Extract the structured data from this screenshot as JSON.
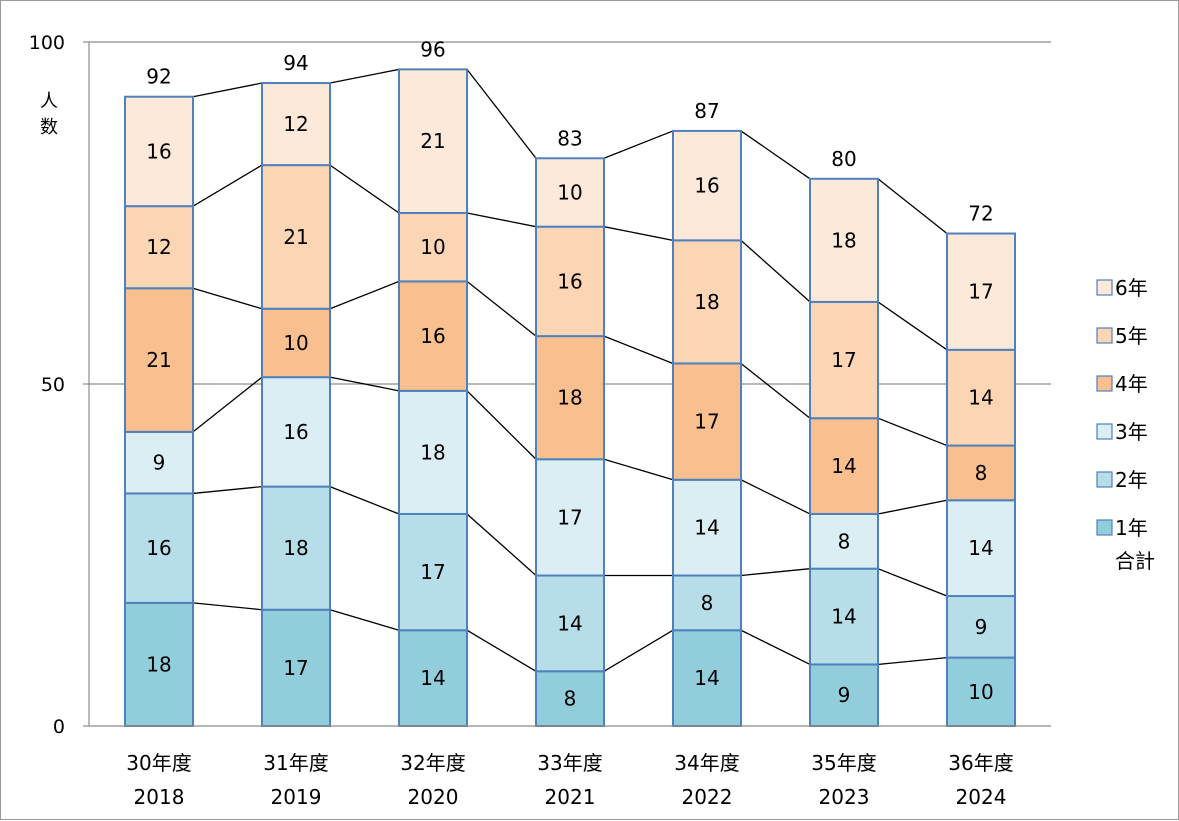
{
  "chart_data": {
    "type": "bar",
    "stacked": true,
    "title": "",
    "ylabel": "人数",
    "xlabel": "",
    "ylim": [
      0,
      100
    ],
    "yticks": [
      0,
      50,
      100
    ],
    "grid": true,
    "legend_position": "right",
    "connector_lines": true,
    "categories": [
      [
        "30年度",
        "2018"
      ],
      [
        "31年度",
        "2019"
      ],
      [
        "32年度",
        "2020"
      ],
      [
        "33年度",
        "2021"
      ],
      [
        "34年度",
        "2022"
      ],
      [
        "35年度",
        "2023"
      ],
      [
        "36年度",
        "2024"
      ]
    ],
    "series": [
      {
        "name": "1年",
        "color": "#92cddc",
        "values": [
          18,
          17,
          14,
          8,
          14,
          9,
          10
        ]
      },
      {
        "name": "2年",
        "color": "#b7dde8",
        "values": [
          16,
          18,
          17,
          14,
          8,
          14,
          9
        ]
      },
      {
        "name": "3年",
        "color": "#dbeef3",
        "values": [
          9,
          16,
          18,
          17,
          14,
          8,
          14
        ]
      },
      {
        "name": "4年",
        "color": "#fabf8f",
        "values": [
          21,
          10,
          16,
          18,
          17,
          14,
          8
        ]
      },
      {
        "name": "5年",
        "color": "#fcd5b5",
        "values": [
          12,
          21,
          10,
          16,
          18,
          17,
          14
        ]
      },
      {
        "name": "6年",
        "color": "#fde9d9",
        "values": [
          16,
          12,
          21,
          10,
          16,
          18,
          17
        ]
      }
    ],
    "totals_label": "合計",
    "totals": [
      92,
      94,
      96,
      83,
      87,
      80,
      72
    ],
    "bar_border_color": "#4f81bd"
  }
}
